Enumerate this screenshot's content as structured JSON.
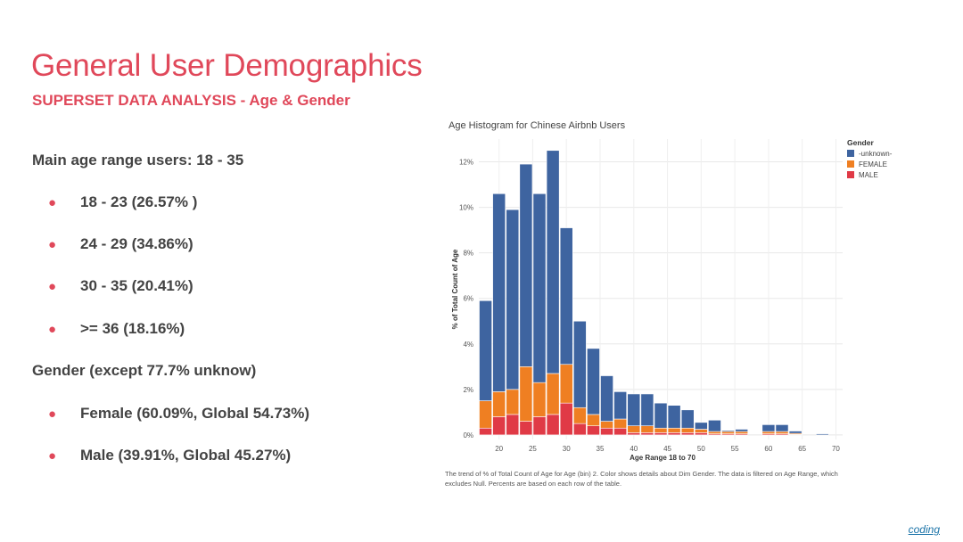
{
  "slide": {
    "title": "General User Demographics",
    "subtitle": "SUPERSET DATA ANALYSIS - Age & Gender",
    "age_heading": "Main age range users: 18 - 35",
    "age_bullets": [
      "18 - 23 (26.57% )",
      "24 - 29 (34.86%)",
      "30 - 35 (20.41%)",
      ">= 36 (18.16%)"
    ],
    "gender_heading": "Gender (except 77.7% unknow)",
    "gender_bullets": [
      "Female (60.09%, Global 54.73%)",
      "Male (39.91%, Global 45.27%)"
    ],
    "bullet_symbol": "●",
    "footer_link": "coding"
  },
  "colors": {
    "accent": "#e0485a",
    "unknown": "#3e64a0",
    "female": "#ef7f22",
    "male": "#e03a46"
  },
  "chart_data": {
    "type": "bar",
    "stacked": true,
    "title": "Age Histogram for Chinese Airbnb Users",
    "xlabel": "Age Range 18 to 70",
    "ylabel": "% of Total Count of Age",
    "xlim": [
      17,
      71
    ],
    "ylim": [
      -0.2,
      13
    ],
    "x_ticks": [
      20,
      25,
      30,
      35,
      40,
      45,
      50,
      55,
      60,
      65,
      70
    ],
    "y_ticks": [
      0,
      2,
      4,
      6,
      8,
      10,
      12
    ],
    "y_tick_labels": [
      "0%",
      "2%",
      "4%",
      "6%",
      "8%",
      "10%",
      "12%"
    ],
    "grid": true,
    "legend": {
      "title": "Gender",
      "position": "top-right"
    },
    "bin_width": 2,
    "bin_starts": [
      17,
      19,
      21,
      23,
      25,
      27,
      29,
      31,
      33,
      35,
      37,
      39,
      41,
      43,
      45,
      47,
      49,
      51,
      53,
      55,
      57,
      59,
      61,
      63,
      65,
      67
    ],
    "series": [
      {
        "name": "MALE",
        "values": [
          0.3,
          0.8,
          0.9,
          0.6,
          0.8,
          0.9,
          1.4,
          0.5,
          0.4,
          0.3,
          0.3,
          0.1,
          0.1,
          0.1,
          0.1,
          0.1,
          0.1,
          0.05,
          0.05,
          0.05,
          0,
          0.05,
          0.05,
          0.02,
          0,
          0
        ]
      },
      {
        "name": "FEMALE",
        "values": [
          1.2,
          1.1,
          1.1,
          2.4,
          1.5,
          1.8,
          1.7,
          0.7,
          0.5,
          0.3,
          0.4,
          0.3,
          0.3,
          0.2,
          0.2,
          0.2,
          0.15,
          0.1,
          0.1,
          0.1,
          0,
          0.1,
          0.1,
          0.05,
          0,
          0
        ]
      },
      {
        "name": "-unknown-",
        "values": [
          4.4,
          8.7,
          7.9,
          8.9,
          8.3,
          9.8,
          6.0,
          3.8,
          2.9,
          2.0,
          1.2,
          1.4,
          1.4,
          1.1,
          1.0,
          0.8,
          0.3,
          0.5,
          0.05,
          0.1,
          0,
          0.3,
          0.3,
          0.1,
          0,
          0.05
        ]
      }
    ],
    "footnote": "The trend of % of Total Count of Age for Age (bin) 2.  Color shows details about Dim Gender. The data is filtered on Age Range, which excludes Null. Percents are based on each row of the table."
  }
}
